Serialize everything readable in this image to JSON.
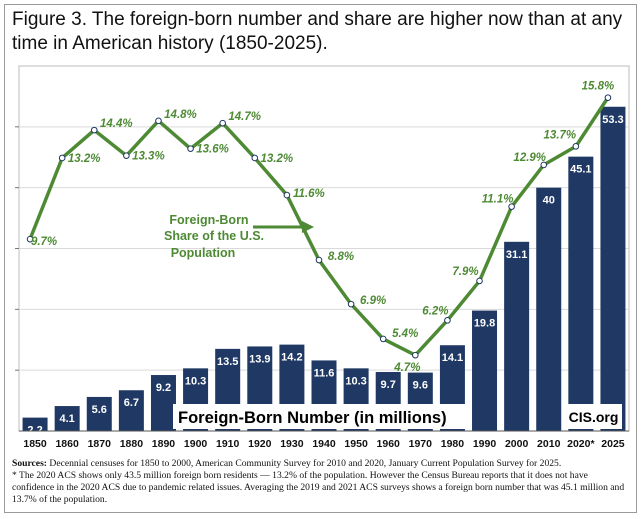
{
  "title": "Figure 3. The foreign-born number and share are higher now than at any time in American history (1850-2025).",
  "chart_data": {
    "type": "bar",
    "categories": [
      "1850",
      "1860",
      "1870",
      "1880",
      "1890",
      "1900",
      "1910",
      "1920",
      "1930",
      "1940",
      "1950",
      "1960",
      "1970",
      "1980",
      "1990",
      "2000",
      "2010",
      "2020*",
      "2025"
    ],
    "series": [
      {
        "name": "Foreign-Born Number (in millions)",
        "type": "bar",
        "values": [
          2.2,
          4.1,
          5.6,
          6.7,
          9.2,
          10.3,
          13.5,
          13.9,
          14.2,
          11.6,
          10.3,
          9.7,
          9.6,
          14.1,
          19.8,
          31.1,
          40,
          45.1,
          53.3
        ],
        "labels": [
          "2.2",
          "4.1",
          "5.6",
          "6.7",
          "9.2",
          "10.3",
          "13.5",
          "13.9",
          "14.2",
          "11.6",
          "10.3",
          "9.7",
          "9.6",
          "14.1",
          "19.8",
          "31.1",
          "40",
          "45.1",
          "53.3"
        ]
      },
      {
        "name": "Foreign-Born Share of the U.S. Population",
        "type": "line",
        "values": [
          9.7,
          13.2,
          14.4,
          13.3,
          14.8,
          13.6,
          14.7,
          13.2,
          11.6,
          8.8,
          6.9,
          5.4,
          4.7,
          6.2,
          7.9,
          11.1,
          12.9,
          13.7,
          15.8
        ],
        "labels": [
          "9.7%",
          "13.2%",
          "14.4%",
          "13.3%",
          "14.8%",
          "13.6%",
          "14.7%",
          "13.2%",
          "11.6%",
          "8.8%",
          "6.9%",
          "5.4%",
          "4.7%",
          "6.2%",
          "7.9%",
          "11.1%",
          "12.9%",
          "13.7%",
          "15.8%"
        ]
      }
    ],
    "bar_axis_range": [
      0,
      60
    ],
    "line_axis_range": [
      1,
      16
    ],
    "line_label_lines": [
      "Foreign-Born",
      "Share of the U.S.",
      "Population"
    ],
    "bar_legend_label": "Foreign-Born Number (in millions)",
    "source_tag": "CIS.org",
    "colors": {
      "bar": "#1f3864",
      "line": "#4e8a34",
      "label_green": "#4e8a34",
      "marker_fill": "#ffffff",
      "marker_stroke": "#1f3864"
    },
    "grid": true
  },
  "notes": {
    "sources_label": "Sources:",
    "sources_text": " Decennial censuses for 1850 to 2000, American Community Survey for 2010 and 2020, January Current Population Survey for 2025.",
    "footnote": "* The 2020 ACS shows only 43.5 million foreign born residents — 13.2% of the population. However the Census Bureau reports that it does not have confidence in the 2020 ACS due to pandemic related issues. Averaging the 2019 and 2021 ACS surveys  shows a foreign born number that was 45.1 million and 13.7% of the population."
  }
}
